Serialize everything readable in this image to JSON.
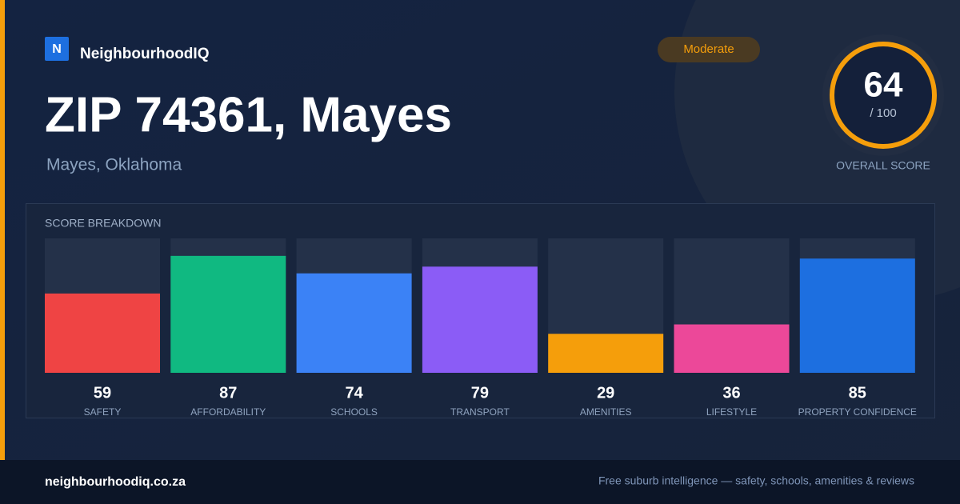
{
  "brand": {
    "logo": "N",
    "name": "NeighbourhoodIQ"
  },
  "badge": "Moderate",
  "header": {
    "title": "ZIP 74361, Mayes",
    "subtitle": "Mayes, Oklahoma"
  },
  "score": {
    "value": "64",
    "max": "/ 100",
    "caption": "OVERALL SCORE"
  },
  "breakdown": {
    "title": "SCORE BREAKDOWN",
    "categories": [
      "SAFETY",
      "AFFORDABILITY",
      "SCHOOLS",
      "TRANSPORT",
      "AMENITIES",
      "LIFESTYLE",
      "PROPERTY CONFIDENCE"
    ],
    "values": [
      59,
      87,
      74,
      79,
      29,
      36,
      85
    ],
    "colors": [
      "#ef4444",
      "#10b981",
      "#3b82f6",
      "#8b5cf6",
      "#f59e0b",
      "#ec4899",
      "#1d6fe0"
    ],
    "ylim": [
      0,
      100
    ]
  },
  "footer": {
    "site": "neighbourhoodiq.co.za",
    "tagline": "Free suburb intelligence — safety, schools, amenities & reviews"
  }
}
